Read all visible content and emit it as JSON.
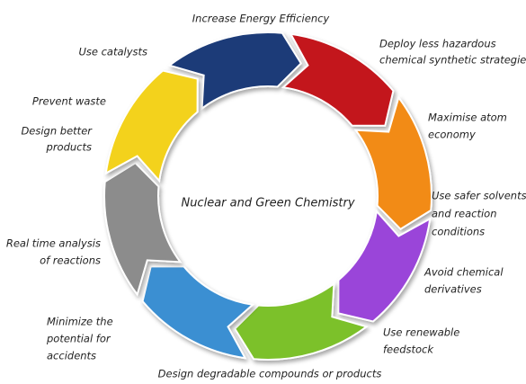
{
  "center_label": "Nuclear and Green Chemistry",
  "labels": [
    {
      "lines": [
        "Increase Energy Efficiency"
      ]
    },
    {
      "lines": [
        "Deploy less hazardous",
        "chemical synthetic strategies"
      ]
    },
    {
      "lines": [
        "Maximise atom",
        "economy"
      ]
    },
    {
      "lines": [
        "Use safer solvents",
        "and reaction",
        "conditions"
      ]
    },
    {
      "lines": [
        "Avoid chemical",
        "derivatives"
      ]
    },
    {
      "lines": [
        "Use renewable",
        "feedstock"
      ]
    },
    {
      "lines": [
        "Design degradable compounds or products"
      ]
    },
    {
      "lines": [
        "Minimize the",
        "potential for",
        "accidents"
      ]
    },
    {
      "lines": [
        "Real time analysis",
        "of reactions"
      ]
    },
    {
      "lines": [
        "Design better",
        "products"
      ]
    },
    {
      "lines": [
        "Prevent waste"
      ]
    },
    {
      "lines": [
        "Use catalysts"
      ]
    }
  ]
}
